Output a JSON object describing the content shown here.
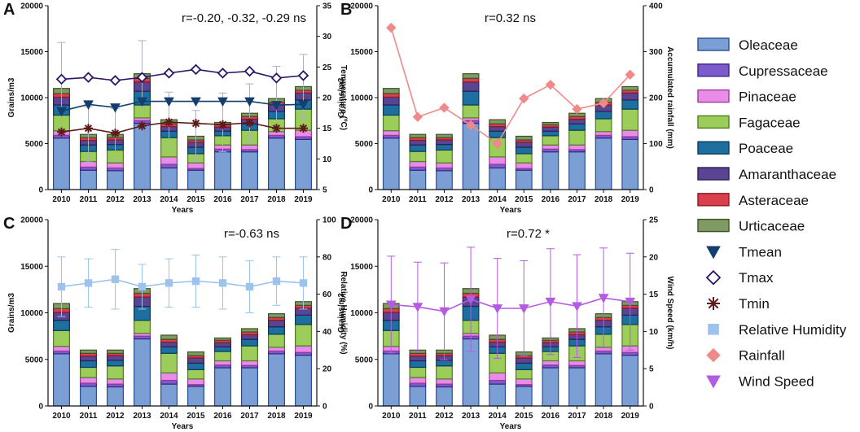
{
  "figure": {
    "legend": [
      {
        "label": "Oleaceae",
        "kind": "box",
        "color": "#7b9fd4"
      },
      {
        "label": "Cupressaceae",
        "kind": "box",
        "color": "#7c5ccc"
      },
      {
        "label": "Pinaceae",
        "kind": "box",
        "color": "#e98ce8"
      },
      {
        "label": "Fagaceae",
        "kind": "box",
        "color": "#9ccc5a"
      },
      {
        "label": "Poaceae",
        "kind": "box",
        "color": "#1c6f9e"
      },
      {
        "label": "Amaranthaceae",
        "kind": "box",
        "color": "#5a4593"
      },
      {
        "label": "Asteraceae",
        "kind": "box",
        "color": "#d93f4c"
      },
      {
        "label": "Urticaceae",
        "kind": "box",
        "color": "#7f9a62"
      },
      {
        "label": "Tmean",
        "kind": "tri-down",
        "color": "#143e6e"
      },
      {
        "label": "Tmax",
        "kind": "diamond-open",
        "color": "#2b1469"
      },
      {
        "label": "Tmin",
        "kind": "star",
        "color": "#5e1a1a"
      },
      {
        "label": "Relative Humidity",
        "kind": "square",
        "color": "#9cc3ec"
      },
      {
        "label": "Rainfall",
        "kind": "diamond",
        "color": "#f08a8a"
      },
      {
        "label": "Wind Speed",
        "kind": "tri-down",
        "color": "#b45be3"
      }
    ]
  },
  "chart_data": [
    {
      "panel": "A",
      "type": "bar",
      "stacked": true,
      "categories": [
        "2010",
        "2011",
        "2012",
        "2013",
        "2014",
        "2015",
        "2016",
        "2017",
        "2018",
        "2019"
      ],
      "series": [
        {
          "name": "Oleaceae",
          "values": [
            5600,
            2100,
            2050,
            7200,
            2350,
            2100,
            4100,
            4100,
            5600,
            5450
          ]
        },
        {
          "name": "Cupressaceae",
          "values": [
            300,
            350,
            300,
            300,
            400,
            200,
            300,
            250,
            300,
            300
          ]
        },
        {
          "name": "Pinaceae",
          "values": [
            500,
            600,
            550,
            300,
            800,
            600,
            450,
            500,
            400,
            700
          ]
        },
        {
          "name": "Fagaceae",
          "values": [
            1700,
            1100,
            1400,
            1400,
            2100,
            1000,
            1000,
            1600,
            1400,
            2300
          ]
        },
        {
          "name": "Poaceae",
          "values": [
            1100,
            700,
            600,
            1500,
            700,
            700,
            500,
            700,
            800,
            1000
          ]
        },
        {
          "name": "Amaranthaceae",
          "values": [
            850,
            500,
            500,
            1000,
            500,
            550,
            450,
            500,
            700,
            750
          ]
        },
        {
          "name": "Asteraceae",
          "values": [
            400,
            300,
            250,
            400,
            300,
            250,
            250,
            300,
            300,
            300
          ]
        },
        {
          "name": "Urticaceae",
          "values": [
            550,
            350,
            350,
            500,
            450,
            400,
            250,
            350,
            400,
            400
          ]
        }
      ],
      "ylim": [
        0,
        20000
      ],
      "yticks": [
        "0",
        "5000",
        "10000",
        "15000",
        "20000"
      ],
      "ylabel": "Grains/m3",
      "xlabel": "Years",
      "y2lim": [
        5,
        35
      ],
      "y2ticks": [
        "5",
        "10",
        "15",
        "20",
        "25",
        "30",
        "35"
      ],
      "y2label": "Temperature (ºC)",
      "lines": [
        {
          "name": "Tmax",
          "marker": "diamond-open",
          "color": "#2b1469",
          "values": [
            23.0,
            23.3,
            22.8,
            23.3,
            24.0,
            24.6,
            24.0,
            24.3,
            23.2,
            23.6
          ],
          "errors": [
            0,
            0,
            0,
            0,
            0,
            0,
            0,
            0,
            0,
            0
          ]
        },
        {
          "name": "Tmean",
          "marker": "tri-down",
          "color": "#143e6e",
          "values": [
            17.8,
            18.9,
            18.4,
            19.4,
            19.4,
            19.4,
            19.4,
            19.4,
            18.8,
            18.9
          ],
          "errors": [
            0,
            0,
            0,
            0,
            0,
            0,
            0,
            0,
            0,
            0
          ]
        },
        {
          "name": "Tmin",
          "marker": "star",
          "color": "#5e1a1a",
          "values": [
            14.4,
            15.0,
            14.2,
            15.4,
            16.0,
            15.8,
            15.6,
            15.9,
            15.0,
            15.0
          ],
          "errors": [
            0,
            0,
            0,
            0,
            0,
            0,
            0,
            0,
            0,
            0
          ]
        }
      ],
      "error_bar_color": "#aab0bd",
      "pollen_errors": [
        5000,
        3000,
        2800,
        3600,
        3000,
        2800,
        3200,
        3200,
        3500,
        3500
      ],
      "annotation": "r=-0.20, -0.32, -0.29 ns"
    },
    {
      "panel": "B",
      "type": "bar",
      "stacked": true,
      "categories": [
        "2010",
        "2011",
        "2012",
        "2013",
        "2014",
        "2015",
        "2016",
        "2017",
        "2018",
        "2019"
      ],
      "series_ref": "A",
      "ylim": [
        0,
        20000
      ],
      "yticks": [
        "0",
        "5000",
        "10000",
        "15000",
        "20000"
      ],
      "ylabel": "Grains/m3",
      "xlabel": "Years",
      "y2lim": [
        0,
        400
      ],
      "y2ticks": [
        "0",
        "100",
        "200",
        "300",
        "400"
      ],
      "y2label": "Accumulated rainfall (mm)",
      "lines": [
        {
          "name": "Rainfall",
          "marker": "diamond",
          "color": "#f08a8a",
          "values": [
            352,
            158,
            178,
            140,
            100,
            198,
            228,
            175,
            188,
            250
          ],
          "errors": [
            0,
            0,
            0,
            0,
            0,
            0,
            0,
            0,
            0,
            0
          ]
        }
      ],
      "annotation": "r=0.32 ns"
    },
    {
      "panel": "C",
      "type": "bar",
      "stacked": true,
      "categories": [
        "2010",
        "2011",
        "2012",
        "2013",
        "2014",
        "2015",
        "2016",
        "2017",
        "2018",
        "2019"
      ],
      "series_ref": "A",
      "ylim": [
        0,
        20000
      ],
      "yticks": [
        "0",
        "5000",
        "10000",
        "15000",
        "20000"
      ],
      "ylabel": "Grains/m3",
      "xlabel": "Years",
      "y2lim": [
        0,
        100
      ],
      "y2ticks": [
        "0",
        "20",
        "40",
        "60",
        "80",
        "100"
      ],
      "y2label": "Relative Humidity (%)",
      "lines": [
        {
          "name": "Relative Humidity",
          "marker": "square",
          "color": "#9cc3ec",
          "values": [
            64,
            66,
            68,
            64,
            66,
            67,
            66,
            64,
            67,
            66
          ],
          "errors": [
            16,
            13,
            16,
            12,
            13,
            14,
            14,
            14,
            13,
            14
          ]
        }
      ],
      "annotation": "r=-0.63 ns"
    },
    {
      "panel": "D",
      "type": "bar",
      "stacked": true,
      "categories": [
        "2010",
        "2011",
        "2012",
        "2013",
        "2014",
        "2015",
        "2016",
        "2017",
        "2018",
        "2019"
      ],
      "series_ref": "A",
      "ylim": [
        0,
        20000
      ],
      "yticks": [
        "0",
        "5000",
        "10000",
        "15000",
        "20000"
      ],
      "ylabel": "Grains/m3",
      "xlabel": "Years",
      "y2lim": [
        0,
        25
      ],
      "y2ticks": [
        "0",
        "5",
        "10",
        "15",
        "20",
        "25"
      ],
      "y2label": "Wind Speed (km/h)",
      "lines": [
        {
          "name": "Wind Speed",
          "marker": "tri-down",
          "color": "#b45be3",
          "values": [
            13.6,
            13.3,
            12.7,
            14.3,
            13.1,
            13.1,
            14.0,
            13.4,
            14.5,
            14.0
          ],
          "errors": [
            6.5,
            6.0,
            6.5,
            7.0,
            6.7,
            6.4,
            7.1,
            6.9,
            6.7,
            6.5
          ]
        }
      ],
      "annotation": "r=0.72 *"
    }
  ]
}
